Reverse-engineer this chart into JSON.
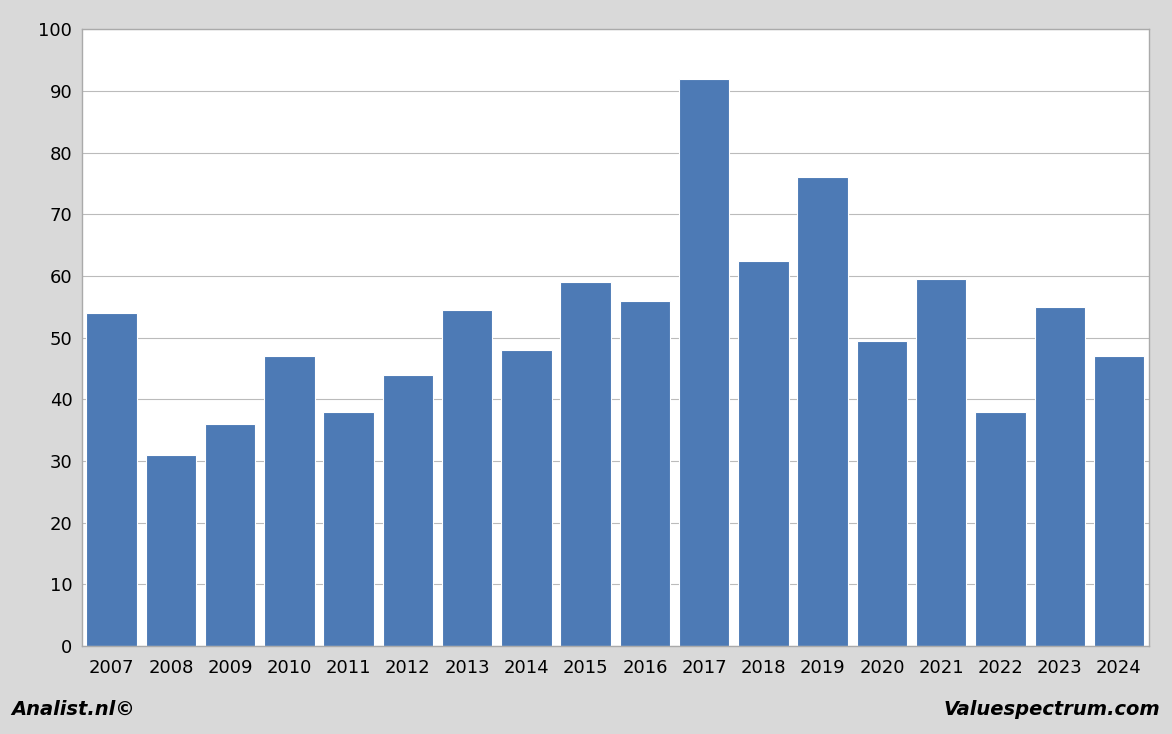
{
  "categories": [
    2007,
    2008,
    2009,
    2010,
    2011,
    2012,
    2013,
    2014,
    2015,
    2016,
    2017,
    2018,
    2019,
    2020,
    2021,
    2022,
    2023,
    2024
  ],
  "values": [
    54,
    31,
    36,
    47,
    38,
    44,
    54.5,
    48,
    59,
    56,
    92,
    62.5,
    76,
    49.5,
    59.5,
    38,
    55,
    47
  ],
  "bar_color": "#4d7ab5",
  "ylim": [
    0,
    100
  ],
  "yticks": [
    0,
    10,
    20,
    30,
    40,
    50,
    60,
    70,
    80,
    90,
    100
  ],
  "plot_bg_color": "#ffffff",
  "outer_bg_color": "#d9d9d9",
  "footer_bg_color": "#d9d9d9",
  "grid_color": "#bbbbbb",
  "left_label": "Analist.nl©",
  "right_label": "Valuespectrum.com",
  "label_fontsize": 14,
  "tick_fontsize": 13,
  "bar_edge_color": "#ffffff",
  "bar_width": 0.85
}
